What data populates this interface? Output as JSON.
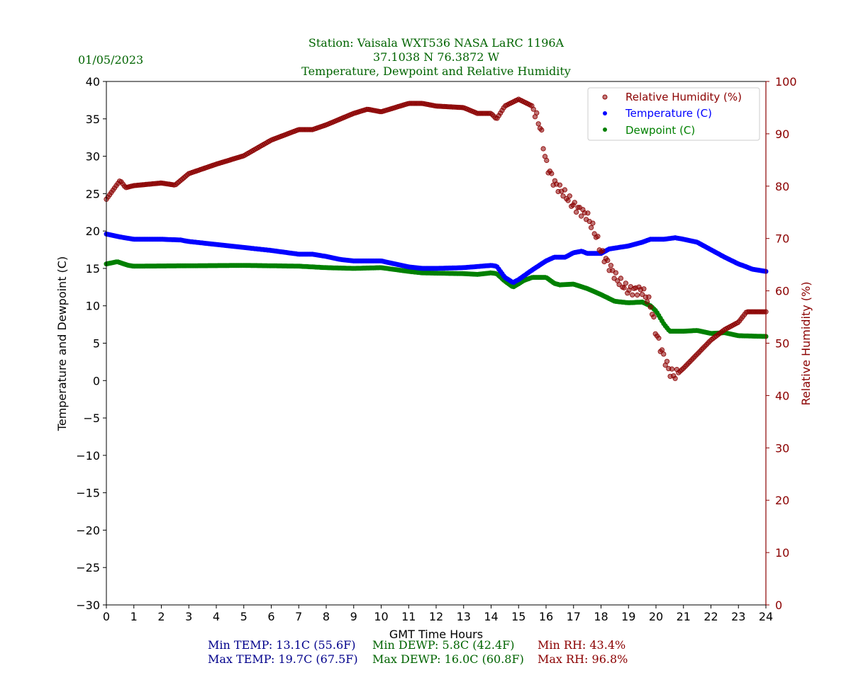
{
  "header": {
    "date": "01/05/2023",
    "title_lines": [
      "Station:  Vaisala WXT536  NASA LaRC 1196A",
      "37.1038 N 76.3872 W",
      "Temperature, Dewpoint and Relative Humidity"
    ]
  },
  "stats": {
    "min_temp": "Min TEMP: 13.1C (55.6F)",
    "max_temp": "Max TEMP: 19.7C (67.5F)",
    "min_dewp": "Min DEWP: 5.8C (42.4F)",
    "max_dewp": "Max DEWP: 16.0C (60.8F)",
    "min_rh": "Min RH: 43.4%",
    "max_rh": "Max RH: 96.8%"
  },
  "colors": {
    "temp": "#0000ff",
    "dewp": "#008000",
    "rh": "#8b0000",
    "title": "#006400",
    "stat_temp": "#00008b"
  },
  "chart_data": {
    "type": "scatter",
    "xlabel": "GMT Time Hours",
    "ylabel": "Temperature and Dewpoint (C)",
    "y2label": "Relative Humidity (%)",
    "xlim": [
      0,
      24
    ],
    "ylim": [
      -30,
      40
    ],
    "y2lim": [
      0,
      100
    ],
    "xticks": [
      0,
      1,
      2,
      3,
      4,
      5,
      6,
      7,
      8,
      9,
      10,
      11,
      12,
      13,
      14,
      15,
      16,
      17,
      18,
      19,
      20,
      21,
      22,
      23,
      24
    ],
    "yticks": [
      40,
      35,
      30,
      25,
      20,
      15,
      10,
      5,
      0,
      -5,
      -10,
      -15,
      -20,
      -25,
      -30
    ],
    "y2ticks": [
      100,
      90,
      80,
      70,
      60,
      50,
      40,
      30,
      20,
      10,
      0
    ],
    "legend_position": "top-right",
    "series": [
      {
        "name": "Relative Humidity (%)",
        "axis": "right",
        "color": "#8b0000",
        "x": [
          0,
          0.5,
          0.7,
          1,
          2,
          2.5,
          3,
          4,
          5,
          6,
          7,
          7.5,
          8,
          9,
          9.5,
          10,
          11,
          11.5,
          12,
          13,
          13.5,
          14,
          14.2,
          14.5,
          15,
          15.5,
          15.8,
          16,
          16.3,
          16.7,
          17,
          17.5,
          17.8,
          18,
          18.3,
          18.6,
          19,
          19.5,
          19.8,
          20,
          20.2,
          20.5,
          20.7,
          21,
          21.5,
          22,
          22.5,
          23,
          23.3,
          23.5,
          24
        ],
        "y": [
          77.5,
          81.1,
          79.7,
          80.1,
          80.6,
          80.2,
          82.4,
          84.2,
          85.8,
          88.8,
          90.8,
          90.8,
          91.7,
          93.9,
          94.7,
          94.2,
          95.8,
          95.8,
          95.3,
          95.0,
          93.9,
          93.9,
          92.8,
          95.3,
          96.6,
          95.3,
          91.2,
          84.4,
          80.6,
          78.3,
          76.3,
          74.3,
          70.9,
          67.5,
          64.8,
          62.1,
          60.1,
          60.1,
          57.4,
          52.0,
          48.6,
          44.5,
          43.8,
          45.2,
          47.9,
          50.6,
          52.6,
          54.0,
          56.0,
          56.0,
          56.0
        ]
      },
      {
        "name": "Temperature (C)",
        "axis": "left",
        "color": "#0000ff",
        "x": [
          0,
          0.5,
          1,
          2,
          2.7,
          3,
          4,
          5,
          6,
          7,
          7.5,
          8,
          8.5,
          9,
          10,
          10.5,
          11,
          11.5,
          12,
          13,
          14,
          14.2,
          14.5,
          14.8,
          15,
          15.5,
          16,
          16.3,
          16.7,
          17,
          17.3,
          17.5,
          18,
          18.3,
          19,
          19.5,
          19.8,
          20.3,
          20.7,
          21,
          21.5,
          22,
          22.5,
          23,
          23.3,
          23.5,
          24
        ],
        "y": [
          19.6,
          19.2,
          18.9,
          18.9,
          18.8,
          18.6,
          18.2,
          17.8,
          17.4,
          16.9,
          16.9,
          16.6,
          16.2,
          16.0,
          16.0,
          15.6,
          15.2,
          15.0,
          15.0,
          15.1,
          15.4,
          15.3,
          13.8,
          13.1,
          13.5,
          14.8,
          16.0,
          16.5,
          16.5,
          17.1,
          17.3,
          17.0,
          17.0,
          17.6,
          18.0,
          18.5,
          18.9,
          18.9,
          19.1,
          18.9,
          18.5,
          17.5,
          16.5,
          15.6,
          15.2,
          14.9,
          14.6
        ]
      },
      {
        "name": "Dewpoint (C)",
        "axis": "left",
        "color": "#008000",
        "x": [
          0,
          0.4,
          0.8,
          1,
          5,
          7,
          8,
          9,
          10,
          11,
          11.5,
          13,
          13.5,
          14,
          14.2,
          14.5,
          14.8,
          15.2,
          15.5,
          16,
          16.3,
          16.5,
          17,
          17.5,
          18,
          18.5,
          19,
          19.5,
          19.8,
          20,
          20.3,
          20.5,
          21,
          21.5,
          22,
          22.5,
          23,
          24
        ],
        "y": [
          15.6,
          15.9,
          15.4,
          15.3,
          15.4,
          15.3,
          15.1,
          15.0,
          15.1,
          14.6,
          14.4,
          14.3,
          14.2,
          14.4,
          14.3,
          13.3,
          12.5,
          13.4,
          13.8,
          13.8,
          13.0,
          12.8,
          12.9,
          12.3,
          11.5,
          10.6,
          10.4,
          10.5,
          10.0,
          9.3,
          7.5,
          6.6,
          6.6,
          6.7,
          6.3,
          6.4,
          6.0,
          5.9
        ]
      }
    ]
  }
}
